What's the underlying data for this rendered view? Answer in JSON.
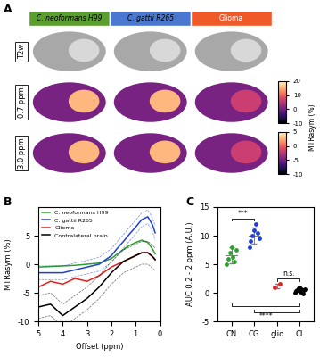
{
  "panel_a": {
    "panel_label": "A",
    "columns": [
      {
        "text": "C. neoformans H99",
        "color": "#5a9e2e",
        "italic": true
      },
      {
        "text": "C. gattii R265",
        "color": "#4a78d0",
        "italic": true
      },
      {
        "text": "Glioma",
        "color": "#f05a28",
        "italic": false
      }
    ],
    "rows": [
      "T2w",
      "0.7 ppm",
      "3.0 ppm"
    ],
    "colorbars": [
      {
        "row": "0.7 ppm",
        "range": [
          -10,
          20
        ],
        "ticks": [
          -10,
          0,
          10,
          20
        ]
      },
      {
        "row": "3.0 ppm",
        "range": [
          -10,
          5
        ],
        "ticks": [
          -10,
          -5,
          0,
          5
        ]
      }
    ],
    "colorbar_label": "MTRasym (%)"
  },
  "chart_data": [
    {
      "panel_label": "B",
      "type": "line",
      "x": [
        5,
        4.5,
        4,
        3.5,
        3,
        2.5,
        2,
        1.75,
        1.5,
        1.25,
        1,
        0.75,
        0.5,
        0.3,
        0.2
      ],
      "xlim": [
        5,
        0
      ],
      "xticks": [
        5,
        4,
        3,
        2,
        1,
        0
      ],
      "ylim": [
        -10,
        10
      ],
      "yticks": [
        -10,
        -5,
        0,
        5
      ],
      "x_label": "Offset (ppm)",
      "y_label": "MTRasym (%)",
      "legend": "upper left",
      "series": [
        {
          "name": "C. neoformans H99",
          "color": "#2ca02c",
          "values": [
            -0.5,
            -0.4,
            -0.3,
            -0.2,
            0,
            0.2,
            1,
            1.8,
            2.6,
            3.3,
            3.8,
            4.2,
            3.8,
            2.6,
            1.8
          ]
        },
        {
          "name": "C. gattii R265",
          "color": "#1f3fd6",
          "values": [
            -1.5,
            -1.5,
            -1.5,
            -1,
            -0.5,
            0,
            1.5,
            2.8,
            4,
            5.3,
            6.5,
            7.8,
            8.3,
            6.8,
            5.5
          ],
          "sd": [
            1.2,
            1.2,
            1.2,
            1.2,
            1.2,
            1.2,
            1.2,
            1.2,
            1.2,
            1.2,
            1.2,
            1.2,
            1.2,
            1.2,
            1.2
          ]
        },
        {
          "name": "Glioma",
          "color": "#e02020",
          "values": [
            -4,
            -3,
            -3.5,
            -2.5,
            -3,
            -2,
            -0.5,
            0,
            0.5,
            1,
            1.5,
            2,
            2,
            1.3,
            0.8
          ]
        },
        {
          "name": "Contralateral brain",
          "color": "#000000",
          "values": [
            -7.5,
            -7,
            -9,
            -7.5,
            -6,
            -4,
            -1.5,
            -0.5,
            0.5,
            1,
            1.5,
            2,
            2,
            1.3,
            0.8
          ],
          "sd": [
            2,
            2,
            2,
            2,
            2,
            2,
            2,
            2,
            2,
            2,
            2,
            2,
            2,
            2,
            2
          ]
        }
      ]
    },
    {
      "panel_label": "C",
      "type": "scatter",
      "categories": [
        "CN",
        "CG",
        "glio",
        "CL"
      ],
      "colors": [
        "#2ca02c",
        "#1f3fd6",
        "#e02020",
        "#000000"
      ],
      "values": [
        [
          5,
          6,
          7,
          8,
          6.2,
          5.5,
          7.5
        ],
        [
          8,
          9,
          10,
          11,
          12,
          10.5,
          9.5
        ],
        [
          1,
          1.5
        ],
        [
          0,
          0.3,
          0.5,
          0.8,
          1,
          0.2,
          0.6,
          -0.2,
          0.4,
          0.7
        ]
      ],
      "means": [
        6.5,
        10,
        1.2,
        0.5
      ],
      "sds": [
        1.4,
        1.4,
        0.4,
        0.4
      ],
      "ylim": [
        -5,
        15
      ],
      "yticks": [
        -5,
        0,
        5,
        10,
        15
      ],
      "y_label": "AUC 0.2 - 2 ppm (A.U.)",
      "comparisons": [
        {
          "from": "CN",
          "to": "CG",
          "label": "***"
        },
        {
          "from": "glio",
          "to": "CL",
          "label": "n.s."
        },
        {
          "from": "CN",
          "to": "CL",
          "label": "****"
        },
        {
          "from": "CG",
          "to": "CL",
          "label": "****"
        }
      ]
    }
  ]
}
